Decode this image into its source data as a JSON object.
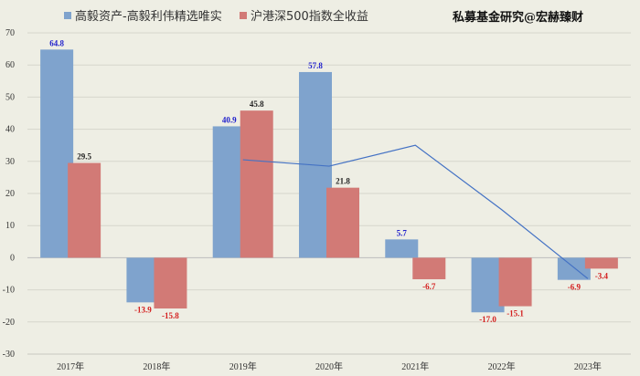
{
  "watermark": "私募基金研究@宏赫臻财",
  "chart_data": {
    "type": "bar",
    "categories": [
      "2017年",
      "2018年",
      "2019年",
      "2020年",
      "2021年",
      "2022年",
      "2023年"
    ],
    "series": [
      {
        "name": "高毅资产-高毅利伟精选唯实",
        "values": [
          64.8,
          -13.9,
          40.9,
          57.8,
          5.7,
          -17.0,
          -6.9
        ],
        "color": "#7fa3cd",
        "label_color_pos": "#1f1fcc",
        "label_color_neg": "#d42020"
      },
      {
        "name": "沪港深500指数全收益",
        "values": [
          29.5,
          -15.8,
          45.8,
          21.8,
          -6.7,
          -15.1,
          -3.4
        ],
        "color": "#d27a76",
        "label_color_pos": "#222222",
        "label_color_neg": "#d42020"
      }
    ],
    "labels": [
      [
        "64.8",
        "-13.9",
        "40.9",
        "57.8",
        "5.7",
        "-17.0",
        "-6.9"
      ],
      [
        "29.5",
        "-15.8",
        "45.8",
        "21.8",
        "-6.7",
        "-15.1",
        "-3.4"
      ]
    ],
    "line": {
      "x_index": [
        2,
        3,
        4,
        5,
        6
      ],
      "values": [
        30.5,
        28.5,
        35,
        15,
        -6.5
      ],
      "color": "#4472c4"
    },
    "yticks": [
      "70",
      "60",
      "50",
      "40",
      "30",
      "20",
      "10",
      "0",
      "-10",
      "-20",
      "-30"
    ],
    "ylim": [
      -30,
      70
    ],
    "grid": true,
    "legend": "top-left"
  }
}
